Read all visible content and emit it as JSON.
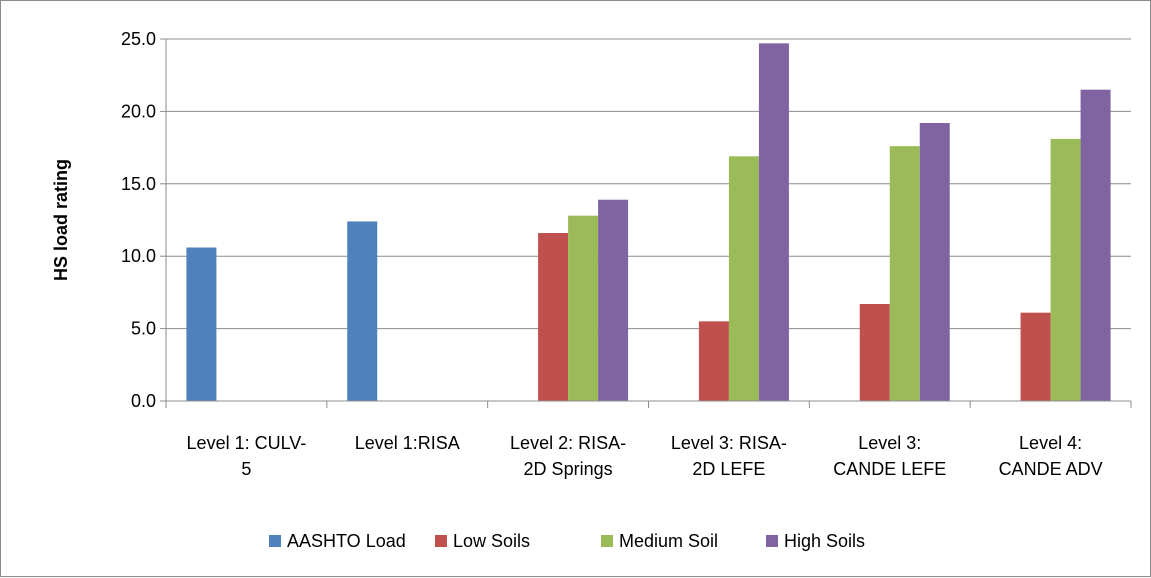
{
  "chart_data": {
    "type": "bar",
    "title": "",
    "xlabel": "",
    "ylabel": "HS load rating",
    "ylim": [
      0,
      25
    ],
    "yticks": [
      "0.0",
      "5.0",
      "10.0",
      "15.0",
      "20.0",
      "25.0"
    ],
    "grid": true,
    "legend_position": "bottom",
    "categories": [
      [
        "Level 1: CULV-",
        "5"
      ],
      [
        "Level 1:RISA"
      ],
      [
        "Level 2: RISA-",
        "2D Springs"
      ],
      [
        "Level 3: RISA-",
        "2D LEFE"
      ],
      [
        "Level 3:",
        "CANDE LEFE"
      ],
      [
        "Level 4:",
        "CANDE ADV"
      ]
    ],
    "series": [
      {
        "name": "AASHTO Load",
        "color": "#4f81bd",
        "values": [
          10.6,
          12.4,
          null,
          null,
          null,
          null
        ]
      },
      {
        "name": "Low Soils",
        "color": "#c0504d",
        "values": [
          null,
          null,
          11.6,
          5.5,
          6.7,
          6.1
        ]
      },
      {
        "name": "Medium Soil",
        "color": "#9bbb59",
        "values": [
          null,
          null,
          12.8,
          16.9,
          17.6,
          18.1
        ]
      },
      {
        "name": "High Soils",
        "color": "#8064a2",
        "values": [
          null,
          null,
          13.9,
          24.7,
          19.2,
          21.5
        ]
      }
    ]
  }
}
